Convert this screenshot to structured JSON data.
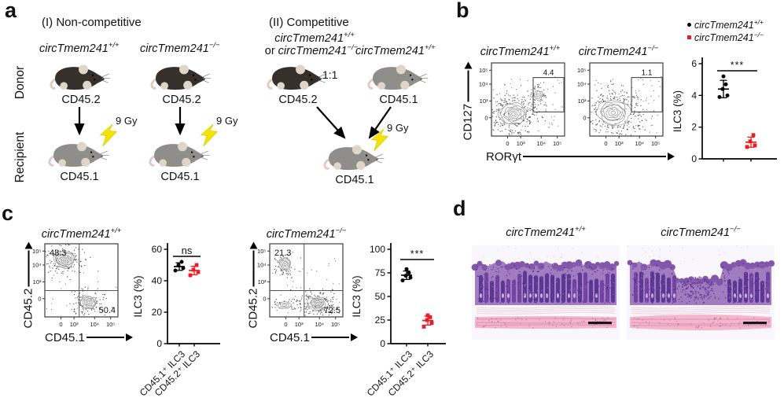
{
  "colors": {
    "accent_red": "#ec1c24",
    "black": "#000000",
    "bolt_yellow": "#f4e300"
  },
  "panels": {
    "a": {
      "label": "a",
      "row_labels": {
        "donor": "Donor",
        "recipient": "Recipient"
      },
      "noncompetitive": {
        "heading": "(I) Non-competitive",
        "columns": [
          {
            "genotype": {
              "base": "circTmem241",
              "sup": "+/+"
            },
            "donor_cd": "CD45.2",
            "dose": "9 Gy",
            "recipient_cd": "CD45.1"
          },
          {
            "genotype": {
              "base": "circTmem241",
              "sup": "−/−"
            },
            "donor_cd": "CD45.2",
            "dose": "9 Gy",
            "recipient_cd": "CD45.1"
          }
        ]
      },
      "competitive": {
        "heading": "(II) Competitive",
        "donor1_line1": {
          "base": "circTmem241",
          "sup": "+/+"
        },
        "or_prefix": "or ",
        "donor1_line2": {
          "base": "circTmem241",
          "sup": "−/−"
        },
        "donor2": {
          "base": "circTmem241",
          "sup": "+/+"
        },
        "ratio": "1:1",
        "donor1_cd": "CD45.2",
        "donor2_cd": "CD45.1",
        "dose": "9 Gy",
        "recipient_cd": "CD45.1"
      }
    },
    "b": {
      "label": "b",
      "flow": {
        "xlabel": "RORγt",
        "ylabel": "CD127",
        "xticks": [
          "0",
          "10³",
          "10⁴",
          "10⁵"
        ],
        "yticks": [
          "0",
          "10³",
          "10⁴",
          "10⁵"
        ],
        "plots": [
          {
            "title": {
              "base": "circTmem241",
              "sup": "+/+"
            },
            "gate": "4.4"
          },
          {
            "title": {
              "base": "circTmem241",
              "sup": "−/−"
            },
            "gate": "1.1"
          }
        ]
      },
      "legend": [
        {
          "marker": "circle",
          "color": "#000000",
          "label": {
            "base": "circTmem241",
            "sup": "+/+"
          }
        },
        {
          "marker": "square",
          "color": "#ec1c24",
          "label": {
            "base": "circTmem241",
            "sup": "−/−"
          }
        }
      ]
    },
    "c": {
      "label": "c",
      "flow": {
        "xlabel": "CD45.1",
        "ylabel": "CD45.2",
        "xticks": [
          "0",
          "10³",
          "10⁴",
          "10⁵"
        ],
        "yticks": [
          "0",
          "10³",
          "10⁴",
          "10⁵"
        ],
        "plots": [
          {
            "title": {
              "base": "circTmem241",
              "sup": "+/+"
            },
            "quadrant_top_left": "48.3",
            "quadrant_bottom_right": "50.4"
          },
          {
            "title": {
              "base": "circTmem241",
              "sup": "−/−"
            },
            "quadrant_top_left": "21.3",
            "quadrant_bottom_right": "72.5"
          }
        ]
      }
    },
    "d": {
      "label": "d",
      "images": [
        {
          "title": {
            "base": "circTmem241",
            "sup": "+/+"
          }
        },
        {
          "title": {
            "base": "circTmem241",
            "sup": "−/−"
          }
        }
      ]
    }
  },
  "chart_data": [
    {
      "type": "scatter",
      "panel": "b",
      "ylabel": "ILC3 (%)",
      "ylim": [
        0,
        6
      ],
      "yticks": [
        0,
        2,
        4,
        6
      ],
      "groups": [
        {
          "name": "circTmem241+/+",
          "marker": "circle",
          "color": "#000000",
          "values": [
            3.9,
            4.0,
            4.4,
            4.7,
            5.2
          ],
          "mean": 4.4,
          "sd": 0.55
        },
        {
          "name": "circTmem241−/−",
          "marker": "square",
          "color": "#ec1c24",
          "values": [
            0.75,
            0.85,
            1.1,
            1.5
          ],
          "mean": 1.05,
          "sd": 0.32
        }
      ],
      "significance": "***"
    },
    {
      "type": "scatter",
      "panel": "c-left",
      "ylabel": "ILC3 (%)",
      "ylim": [
        0,
        60
      ],
      "yticks": [
        0,
        20,
        40,
        60
      ],
      "categories": [
        "CD45.1⁺ ILC3",
        "CD45.2⁺ ILC3"
      ],
      "groups": [
        {
          "name": "CD45.1+ ILC3",
          "marker": "circle",
          "color": "#000000",
          "values": [
            46.5,
            48,
            50,
            52
          ],
          "mean": 49,
          "sd": 2.4
        },
        {
          "name": "CD45.2+ ILC3",
          "marker": "square",
          "color": "#ec1c24",
          "values": [
            43.5,
            45.5,
            47,
            50
          ],
          "mean": 46.5,
          "sd": 2.7
        }
      ],
      "significance": "ns"
    },
    {
      "type": "scatter",
      "panel": "c-right",
      "ylabel": "ILC3 (%)",
      "ylim": [
        0,
        100
      ],
      "yticks": [
        0,
        25,
        50,
        75,
        100
      ],
      "categories": [
        "CD45.1⁺ ILC3",
        "CD45.2⁺ ILC3"
      ],
      "groups": [
        {
          "name": "CD45.1+ ILC3",
          "marker": "circle",
          "color": "#000000",
          "values": [
            67,
            70,
            72,
            75,
            79
          ],
          "mean": 72.5,
          "sd": 4.5
        },
        {
          "name": "CD45.2+ ILC3",
          "marker": "square",
          "color": "#ec1c24",
          "values": [
            18,
            22,
            25,
            28,
            30
          ],
          "mean": 24.5,
          "sd": 4.8
        }
      ],
      "significance": "***"
    }
  ]
}
